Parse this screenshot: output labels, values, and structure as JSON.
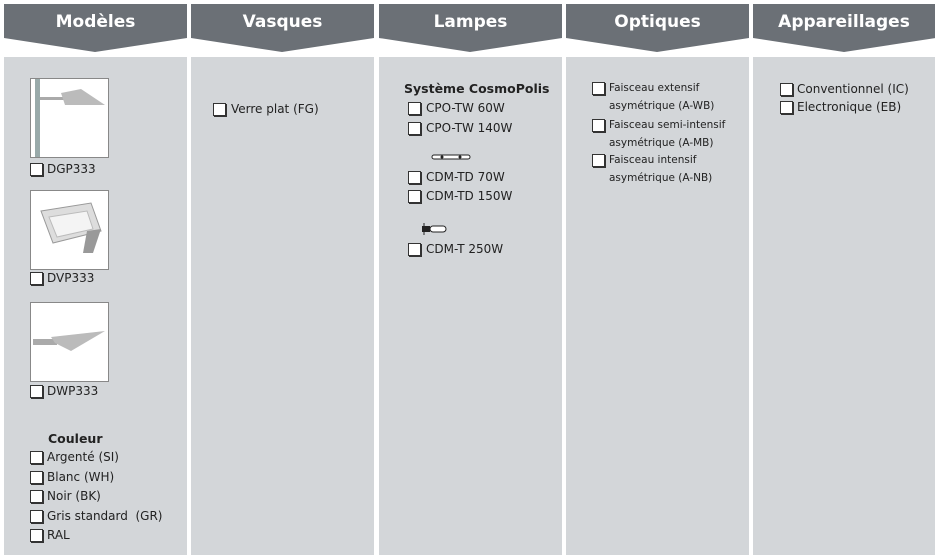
{
  "columns": [
    {
      "title": "Modèles",
      "models": [
        "DGP333",
        "DVP333",
        "DWP333"
      ],
      "color_title": "Couleur",
      "colors": [
        "Argenté (SI)",
        "Blanc (WH)",
        "Noir (BK)",
        "Gris standard  (GR)",
        "RAL"
      ]
    },
    {
      "title": "Vasques",
      "options": [
        "Verre plat (FG)"
      ]
    },
    {
      "title": "Lampes",
      "system_title": "Système CosmoPolis",
      "groups": [
        [
          "CPO-TW 60W",
          "CPO-TW 140W"
        ],
        [
          "CDM-TD 70W",
          "CDM-TD 150W"
        ],
        [
          "CDM-T 250W"
        ]
      ]
    },
    {
      "title": "Optiques",
      "options": [
        [
          "Faisceau extensif",
          "asymétrique (A-WB)"
        ],
        [
          "Faisceau semi-intensif",
          "asymétrique (A-MB)"
        ],
        [
          "Faisceau intensif",
          "asymétrique (A-NB)"
        ]
      ]
    },
    {
      "title": "Appareillages",
      "options": [
        "Conventionnel (IC)",
        "Electronique (EB)"
      ]
    }
  ]
}
